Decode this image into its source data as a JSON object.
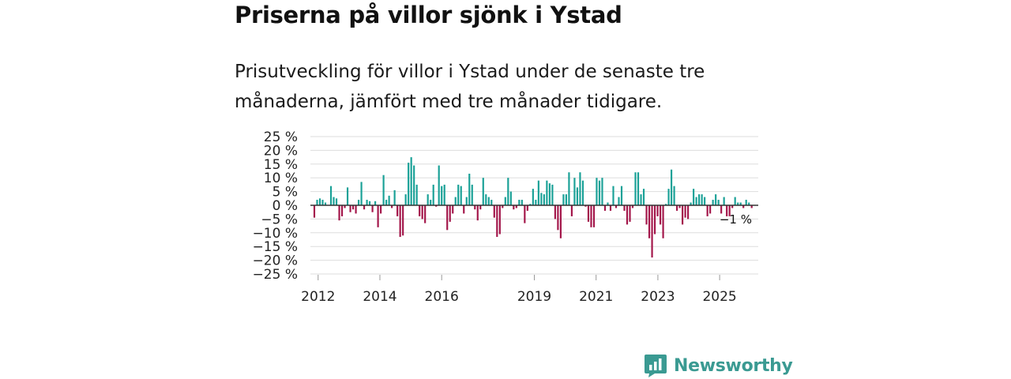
{
  "header": {
    "title": "Priserna på villor sjönk i Ystad",
    "subtitle_line1": "Prisutveckling för villor i Ystad under de senaste tre",
    "subtitle_line2": "månaderna, jämfört med tre månader tidigare."
  },
  "brand": {
    "name": "Newsworthy"
  },
  "colors": {
    "positive": "#1aa197",
    "negative": "#a3164a",
    "grid": "#dddddd",
    "zero": "#333333",
    "brand": "#3a9a92"
  },
  "chart_data": {
    "type": "bar",
    "title": "",
    "xlabel": "",
    "ylabel": "",
    "ylim": [
      -25,
      25
    ],
    "yticks": [
      25,
      20,
      15,
      10,
      5,
      0,
      -5,
      -10,
      -15,
      -20,
      -25
    ],
    "ytick_labels": [
      "25 %",
      "20 %",
      "15 %",
      "10 %",
      "5 %",
      "0 %",
      "−5 %",
      "−10 %",
      "−15 %",
      "−20 %",
      "−25 %"
    ],
    "xticks": [
      {
        "label": "2012",
        "year": 2012
      },
      {
        "label": "2014",
        "year": 2014
      },
      {
        "label": "2016",
        "year": 2016
      },
      {
        "label": "2019",
        "year": 2019
      },
      {
        "label": "2021",
        "year": 2021
      },
      {
        "label": "2023",
        "year": 2023
      },
      {
        "label": "2025",
        "year": 2025
      }
    ],
    "start_year": 2011.75,
    "end_year": 2026.25,
    "values": [
      -4.5,
      2,
      2.5,
      2,
      1,
      0,
      7,
      3,
      2.5,
      -5.5,
      -4,
      -1,
      6.5,
      -2.5,
      -1.5,
      -3,
      2,
      8.5,
      -1.5,
      2,
      1.5,
      -2.5,
      1.5,
      -8,
      -3,
      11,
      2,
      3.5,
      -1,
      5.5,
      -4,
      -11.5,
      -11,
      4,
      15.5,
      17.5,
      14.5,
      7.5,
      -4,
      -5,
      -6.5,
      4,
      2,
      7.5,
      -0.5,
      14.5,
      7,
      7.5,
      -9,
      -6,
      -3,
      3,
      7.5,
      7,
      -3,
      3,
      11.5,
      7.5,
      -1.5,
      -5.5,
      -1.5,
      10,
      4,
      3,
      2,
      -4.5,
      -11.5,
      -10.5,
      -1,
      3,
      10,
      5,
      -1.5,
      -1,
      2,
      2,
      -6.5,
      -2,
      0.5,
      6,
      2,
      9,
      4.5,
      4,
      9,
      8,
      7.5,
      -5,
      -9,
      -12,
      4,
      4,
      12,
      -4,
      10,
      6.5,
      12,
      9,
      -0.5,
      -6,
      -8,
      -8,
      10,
      9,
      10,
      -2,
      1,
      -2,
      7,
      -1,
      3,
      7,
      -2,
      -7,
      -6,
      -1,
      12,
      12,
      4,
      6,
      -7,
      -12,
      -19,
      -10.5,
      -4,
      -7,
      -12,
      0.5,
      6,
      13,
      7,
      -2,
      -1,
      -7,
      -4.5,
      -5,
      1,
      6,
      3,
      4,
      4,
      3,
      -4,
      -3,
      2,
      4,
      2,
      -3,
      3,
      -4,
      -4,
      -1,
      3,
      1,
      1,
      -1,
      2,
      1,
      -1
    ],
    "end_label": "−1 %"
  }
}
